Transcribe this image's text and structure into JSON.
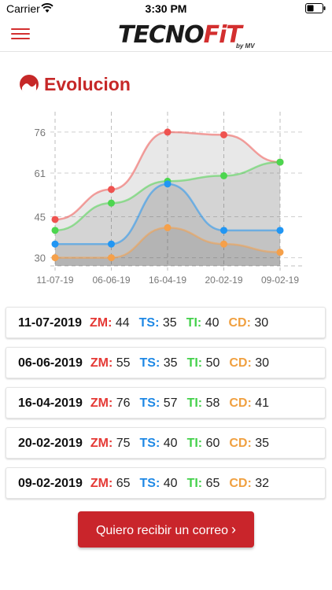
{
  "status_bar": {
    "carrier": "Carrier",
    "time": "3:30 PM"
  },
  "header": {
    "logo_text_a": "TECNO",
    "logo_text_b": "FiT",
    "logo_sub": "by MV",
    "accent_color": "#d32f2f"
  },
  "section": {
    "title": "Evolucion",
    "icon": "gauge-icon"
  },
  "chart_data": {
    "type": "area",
    "categories": [
      "11-07-19",
      "06-06-19",
      "16-04-19",
      "20-02-19",
      "09-02-19"
    ],
    "y_ticks": [
      30,
      45,
      61,
      76
    ],
    "ylim": [
      27,
      80
    ],
    "grid": true,
    "series": [
      {
        "key": "ZM",
        "color": "#ef5350",
        "values": [
          44,
          55,
          76,
          75,
          65
        ]
      },
      {
        "key": "TI",
        "color": "#4cd64f",
        "values": [
          40,
          50,
          58,
          60,
          65
        ]
      },
      {
        "key": "TS",
        "color": "#2196f3",
        "values": [
          35,
          35,
          57,
          40,
          40
        ]
      },
      {
        "key": "CD",
        "color": "#f5a04a",
        "values": [
          30,
          30,
          41,
          35,
          32
        ]
      }
    ]
  },
  "labels": {
    "zm": "ZM:",
    "ts": "TS:",
    "ti": "TI:",
    "cd": "CD:"
  },
  "records": [
    {
      "date": "11-07-2019",
      "zm": "44",
      "ts": "35",
      "ti": "40",
      "cd": "30"
    },
    {
      "date": "06-06-2019",
      "zm": "55",
      "ts": "35",
      "ti": "50",
      "cd": "30"
    },
    {
      "date": "16-04-2019",
      "zm": "76",
      "ts": "57",
      "ti": "58",
      "cd": "41"
    },
    {
      "date": "20-02-2019",
      "zm": "75",
      "ts": "40",
      "ti": "60",
      "cd": "35"
    },
    {
      "date": "09-02-2019",
      "zm": "65",
      "ts": "40",
      "ti": "65",
      "cd": "32"
    }
  ],
  "cta": {
    "label": "Quiero recibir un correo"
  }
}
